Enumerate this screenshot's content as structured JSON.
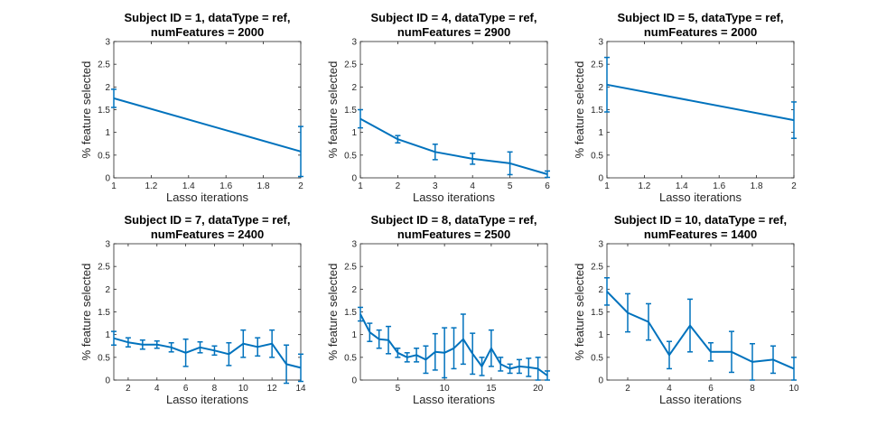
{
  "chart_data": [
    {
      "type": "line",
      "title": [
        "Subject ID = 1, dataType = ref,",
        "numFeatures = 2000"
      ],
      "xlabel": "Lasso iterations",
      "ylabel": "% feature selected",
      "xlim": [
        1,
        2
      ],
      "ylim": [
        0,
        3
      ],
      "xticks": [
        "1",
        "1.2",
        "1.4",
        "1.6",
        "1.8",
        "2"
      ],
      "yticks": [
        "0",
        "0.5",
        "1",
        "1.5",
        "2",
        "2.5",
        "3"
      ],
      "x": [
        1,
        2
      ],
      "y": [
        1.75,
        0.58
      ],
      "err": [
        0.2,
        0.55
      ]
    },
    {
      "type": "line",
      "title": [
        "Subject ID = 4, dataType = ref,",
        "numFeatures = 2900"
      ],
      "xlabel": "Lasso iterations",
      "ylabel": "% feature selected",
      "xlim": [
        1,
        6
      ],
      "ylim": [
        0,
        3
      ],
      "xticks": [
        "1",
        "2",
        "3",
        "4",
        "5",
        "6"
      ],
      "yticks": [
        "0",
        "0.5",
        "1",
        "1.5",
        "2",
        "2.5",
        "3"
      ],
      "x": [
        1,
        2,
        3,
        4,
        5,
        6
      ],
      "y": [
        1.3,
        0.85,
        0.57,
        0.42,
        0.32,
        0.08
      ],
      "err": [
        0.2,
        0.08,
        0.17,
        0.12,
        0.25,
        0.07
      ]
    },
    {
      "type": "line",
      "title": [
        "Subject ID = 5, dataType = ref,",
        "numFeatures = 2000"
      ],
      "xlabel": "Lasso iterations",
      "ylabel": "% feature selected",
      "xlim": [
        1,
        2
      ],
      "ylim": [
        0,
        3
      ],
      "xticks": [
        "1",
        "1.2",
        "1.4",
        "1.6",
        "1.8",
        "2"
      ],
      "yticks": [
        "0",
        "0.5",
        "1",
        "1.5",
        "2",
        "2.5",
        "3"
      ],
      "x": [
        1,
        2
      ],
      "y": [
        2.05,
        1.27
      ],
      "err": [
        0.6,
        0.4
      ]
    },
    {
      "type": "line",
      "title": [
        "Subject ID = 7, dataType = ref,",
        "numFeatures = 2400"
      ],
      "xlabel": "Lasso iterations",
      "ylabel": "% feature selected",
      "xlim": [
        1,
        14
      ],
      "ylim": [
        0,
        3
      ],
      "xticks": [
        "2",
        "4",
        "6",
        "8",
        "10",
        "12",
        "14"
      ],
      "yticks": [
        "0",
        "0.5",
        "1",
        "1.5",
        "2",
        "2.5",
        "3"
      ],
      "x": [
        1,
        2,
        3,
        4,
        5,
        6,
        7,
        8,
        9,
        10,
        11,
        12,
        13,
        14
      ],
      "y": [
        0.92,
        0.83,
        0.78,
        0.78,
        0.72,
        0.6,
        0.72,
        0.65,
        0.57,
        0.8,
        0.73,
        0.8,
        0.35,
        0.27
      ],
      "err": [
        0.15,
        0.1,
        0.1,
        0.08,
        0.1,
        0.3,
        0.12,
        0.1,
        0.25,
        0.3,
        0.2,
        0.3,
        0.42,
        0.3
      ]
    },
    {
      "type": "line",
      "title": [
        "Subject ID = 8, dataType = ref,",
        "numFeatures = 2500"
      ],
      "xlabel": "Lasso iterations",
      "ylabel": "% feature selected",
      "xlim": [
        1,
        21
      ],
      "ylim": [
        0,
        3
      ],
      "xticks": [
        "5",
        "10",
        "15",
        "20"
      ],
      "yticks": [
        "0",
        "0.5",
        "1",
        "1.5",
        "2",
        "2.5",
        "3"
      ],
      "x": [
        1,
        2,
        3,
        4,
        5,
        6,
        7,
        8,
        9,
        10,
        11,
        12,
        13,
        14,
        15,
        16,
        17,
        18,
        19,
        20,
        21
      ],
      "y": [
        1.45,
        1.05,
        0.9,
        0.88,
        0.6,
        0.5,
        0.55,
        0.45,
        0.62,
        0.6,
        0.7,
        0.9,
        0.58,
        0.3,
        0.7,
        0.35,
        0.25,
        0.3,
        0.28,
        0.25,
        0.1
      ],
      "err": [
        0.15,
        0.2,
        0.2,
        0.3,
        0.1,
        0.1,
        0.15,
        0.3,
        0.4,
        0.55,
        0.45,
        0.55,
        0.45,
        0.2,
        0.4,
        0.15,
        0.1,
        0.15,
        0.2,
        0.25,
        0.1
      ]
    },
    {
      "type": "line",
      "title": [
        "Subject ID = 10, dataType = ref,",
        "numFeatures = 1400"
      ],
      "xlabel": "Lasso iterations",
      "ylabel": "% feature selected",
      "xlim": [
        1,
        10
      ],
      "ylim": [
        0,
        3
      ],
      "xticks": [
        "2",
        "4",
        "6",
        "8",
        "10"
      ],
      "yticks": [
        "0",
        "0.5",
        "1",
        "1.5",
        "2",
        "2.5",
        "3"
      ],
      "x": [
        1,
        2,
        3,
        4,
        5,
        6,
        7,
        8,
        9,
        10
      ],
      "y": [
        1.95,
        1.48,
        1.28,
        0.55,
        1.2,
        0.62,
        0.62,
        0.4,
        0.45,
        0.25
      ],
      "err": [
        0.3,
        0.42,
        0.4,
        0.3,
        0.58,
        0.2,
        0.45,
        0.4,
        0.3,
        0.25
      ]
    }
  ],
  "style": {
    "line_color": "#0072BD",
    "axis_color": "#262626",
    "background": "#ffffff"
  }
}
